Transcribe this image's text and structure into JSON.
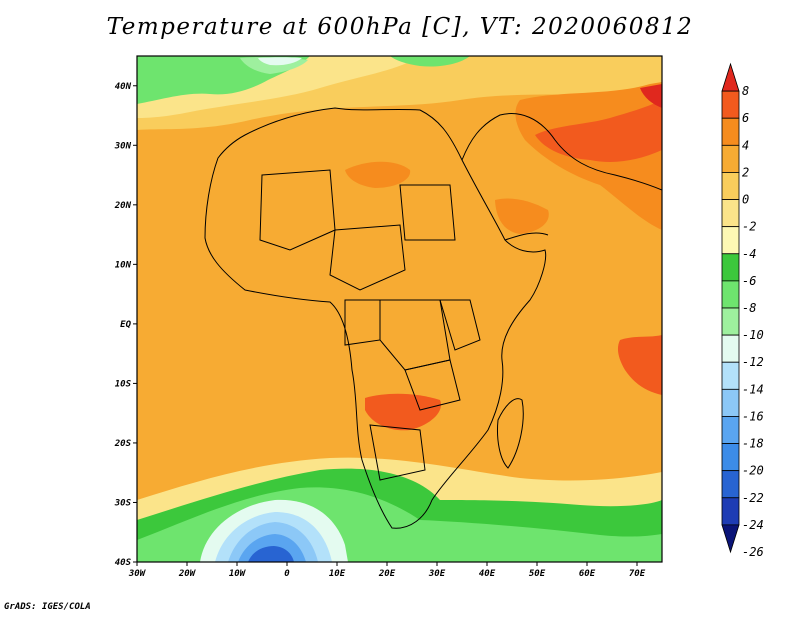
{
  "title": "Temperature at 600hPa [C], VT: 2020060812",
  "credit": "GrADS: IGES/COLA",
  "map": {
    "lon_range": [
      -30,
      75
    ],
    "lat_range": [
      -40,
      45
    ],
    "lat_labels": [
      "40N",
      "30N",
      "20N",
      "10N",
      "EQ",
      "10S",
      "20S",
      "30S",
      "40S"
    ],
    "lon_labels": [
      "30W",
      "20W",
      "10W",
      "0",
      "10E",
      "20E",
      "30E",
      "40E",
      "50E",
      "60E",
      "70E"
    ]
  },
  "colorbar": {
    "levels": [
      "8",
      "6",
      "4",
      "2",
      "0",
      "-2",
      "-4",
      "-6",
      "-8",
      "-10",
      "-12",
      "-14",
      "-16",
      "-18",
      "-20",
      "-22",
      "-24",
      "-26"
    ],
    "colors": [
      "#e0281e",
      "#f25a1e",
      "#f68c1e",
      "#f7ab33",
      "#f9cd5c",
      "#fbe48a",
      "#fdf8b4",
      "#3cc83c",
      "#6ee46e",
      "#9ef09e",
      "#e4fbf0",
      "#b3e1fa",
      "#8cc8f7",
      "#5aa5f0",
      "#3c8ce8",
      "#2864d2",
      "#1e3cb4",
      "#0a1478"
    ]
  }
}
